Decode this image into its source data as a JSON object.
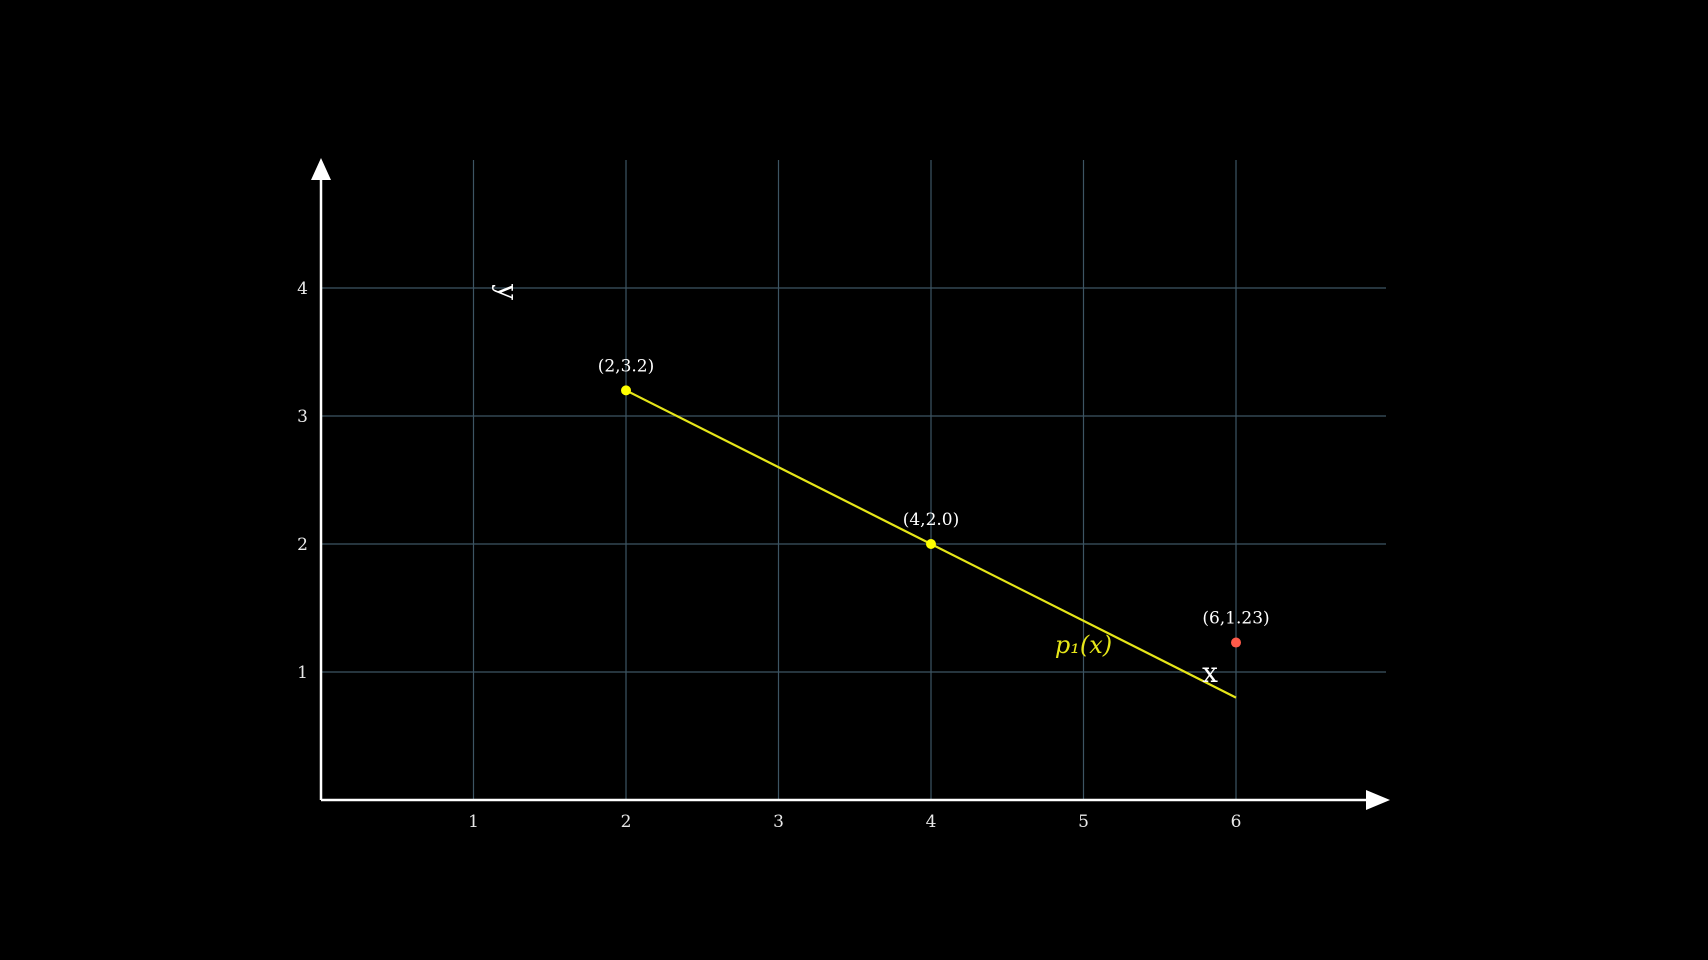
{
  "chart_data": {
    "type": "line",
    "title": "",
    "xlabel": "x",
    "ylabel": "y",
    "xlim": [
      0,
      7
    ],
    "ylim": [
      0,
      5
    ],
    "xticks": [
      1,
      2,
      3,
      4,
      5,
      6
    ],
    "yticks": [
      1,
      2,
      3,
      4
    ],
    "grid": true,
    "series": [
      {
        "name": "p₁(x)",
        "color": "#e6e619",
        "x": [
          2,
          6
        ],
        "y": [
          3.2,
          0.8
        ]
      }
    ],
    "points": [
      {
        "x": 2,
        "y": 3.2,
        "label": "(2,3.2)",
        "color": "#ffff00"
      },
      {
        "x": 4,
        "y": 2.0,
        "label": "(4,2.0)",
        "color": "#ffff00"
      },
      {
        "x": 6,
        "y": 1.23,
        "label": "(6,1.23)",
        "color": "#ff5a4a"
      }
    ],
    "colors": {
      "background": "#000000",
      "grid": "#3d5563",
      "axis": "#ffffff"
    }
  }
}
